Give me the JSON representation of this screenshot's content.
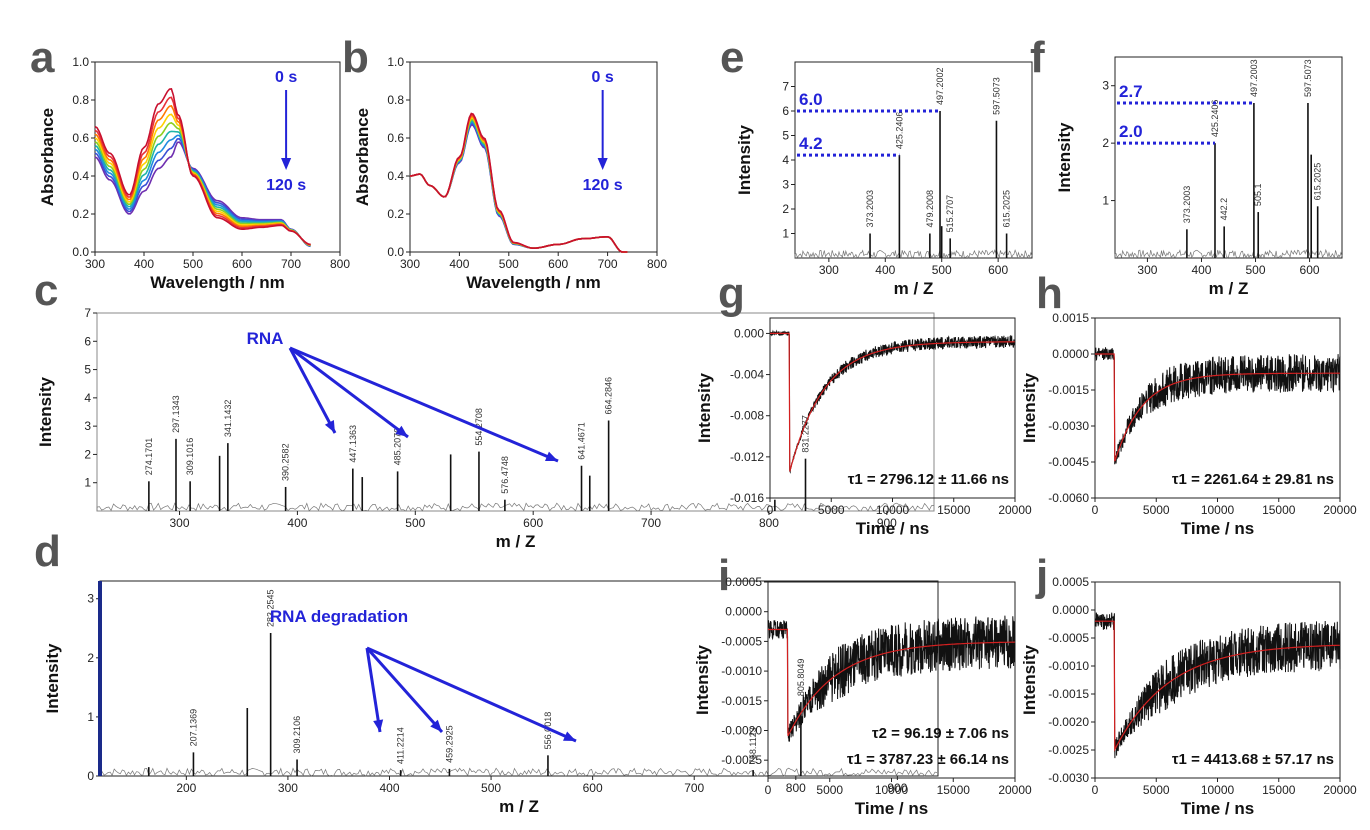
{
  "colors": {
    "ink": "#111111",
    "annot": "#2323d8",
    "fit": "#d42020",
    "letter": "#555555",
    "spectrum": [
      "#c8102e",
      "#e8323a",
      "#ff7a00",
      "#ffd000",
      "#8ccf1f",
      "#1fb5a8",
      "#1f8be0",
      "#3a4fd6",
      "#6f2fb0"
    ]
  },
  "chart_data": [
    {
      "id": "a",
      "letter": "a",
      "type": "line",
      "title": "",
      "xlabel": "Wavelength / nm",
      "ylabel": "Absorbance",
      "xlim": [
        300,
        800
      ],
      "ylim": [
        0,
        1.0
      ],
      "xticks": [
        300,
        400,
        500,
        600,
        700,
        800
      ],
      "yticks": [
        0.0,
        0.2,
        0.4,
        0.6,
        0.8,
        1.0
      ],
      "ytick_labels": [
        "0.0",
        "0.2",
        "0.4",
        "0.6",
        "0.8",
        "1.0"
      ],
      "annotation": {
        "start": "0 s",
        "end": "120 s"
      },
      "series": [
        {
          "name": "0 s",
          "x": [
            300,
            330,
            370,
            400,
            430,
            455,
            470,
            500,
            550,
            600,
            640,
            680,
            700,
            740
          ],
          "y": [
            0.66,
            0.52,
            0.3,
            0.55,
            0.78,
            0.86,
            0.72,
            0.4,
            0.18,
            0.12,
            0.13,
            0.14,
            0.11,
            0.04
          ]
        },
        {
          "name": "120 s",
          "x": [
            300,
            330,
            370,
            400,
            430,
            455,
            470,
            500,
            550,
            600,
            640,
            680,
            700,
            740
          ],
          "y": [
            0.5,
            0.38,
            0.2,
            0.32,
            0.44,
            0.5,
            0.58,
            0.44,
            0.27,
            0.18,
            0.17,
            0.17,
            0.12,
            0.03
          ]
        }
      ]
    },
    {
      "id": "b",
      "letter": "b",
      "type": "line",
      "title": "",
      "xlabel": "Wavelength / nm",
      "ylabel": "Absorbance",
      "xlim": [
        300,
        800
      ],
      "ylim": [
        0,
        1.0
      ],
      "xticks": [
        300,
        400,
        500,
        600,
        700,
        800
      ],
      "yticks": [
        0.0,
        0.2,
        0.4,
        0.6,
        0.8,
        1.0
      ],
      "ytick_labels": [
        "0.0",
        "0.2",
        "0.4",
        "0.6",
        "0.8",
        "1.0"
      ],
      "annotation": {
        "start": "0 s",
        "end": "120 s"
      },
      "series": [
        {
          "name": "0 s",
          "x": [
            300,
            320,
            340,
            370,
            400,
            425,
            450,
            480,
            510,
            550,
            600,
            650,
            700,
            730
          ],
          "y": [
            0.4,
            0.41,
            0.35,
            0.29,
            0.5,
            0.73,
            0.6,
            0.22,
            0.05,
            0.02,
            0.04,
            0.07,
            0.08,
            0.0
          ]
        },
        {
          "name": "120 s",
          "x": [
            300,
            320,
            340,
            370,
            400,
            425,
            450,
            480,
            510,
            550,
            600,
            650,
            700,
            730
          ],
          "y": [
            0.4,
            0.41,
            0.35,
            0.29,
            0.47,
            0.67,
            0.55,
            0.19,
            0.04,
            0.02,
            0.04,
            0.07,
            0.08,
            0.0
          ]
        }
      ]
    },
    {
      "id": "c",
      "letter": "c",
      "type": "bar",
      "title": "",
      "xlabel": "m / Z",
      "ylabel": "Intensity",
      "xlim": [
        230,
        940
      ],
      "ylim": [
        0,
        7
      ],
      "xticks": [
        300,
        400,
        500,
        600,
        700,
        800,
        900
      ],
      "yticks": [
        1,
        2,
        3,
        4,
        5,
        6,
        7
      ],
      "ytick_labels": [
        "1",
        "2",
        "3",
        "4",
        "5",
        "6",
        "7"
      ],
      "annotation": {
        "label": "RNA",
        "targets": [
          530,
          620,
          805
        ]
      },
      "peaks": [
        {
          "x": 274,
          "y": 1.05,
          "label": "274.1701"
        },
        {
          "x": 297,
          "y": 2.55,
          "label": "297.1343"
        },
        {
          "x": 309,
          "y": 1.05,
          "label": "309.1016"
        },
        {
          "x": 334,
          "y": 1.95,
          "label": ""
        },
        {
          "x": 341,
          "y": 2.4,
          "label": "341.1432"
        },
        {
          "x": 390,
          "y": 0.85,
          "label": "390.2582"
        },
        {
          "x": 447,
          "y": 1.5,
          "label": "447.1363"
        },
        {
          "x": 455,
          "y": 1.2,
          "label": ""
        },
        {
          "x": 485,
          "y": 1.4,
          "label": "485.2076"
        },
        {
          "x": 530,
          "y": 2.0,
          "label": ""
        },
        {
          "x": 554,
          "y": 2.1,
          "label": "554.2708"
        },
        {
          "x": 576,
          "y": 0.4,
          "label": "576.4748"
        },
        {
          "x": 641,
          "y": 1.6,
          "label": "641.4671"
        },
        {
          "x": 648,
          "y": 1.25,
          "label": ""
        },
        {
          "x": 664,
          "y": 3.2,
          "label": "664.2846"
        },
        {
          "x": 805,
          "y": 0.4,
          "label": ""
        },
        {
          "x": 831,
          "y": 1.85,
          "label": "831.2277"
        }
      ]
    },
    {
      "id": "d",
      "letter": "d",
      "type": "bar",
      "title": "",
      "xlabel": "m / Z",
      "ylabel": "Intensity",
      "xlim": [
        115,
        940
      ],
      "ylim": [
        0,
        3.3
      ],
      "xticks": [
        200,
        300,
        400,
        500,
        600,
        700,
        800,
        900
      ],
      "yticks": [
        0,
        1,
        2,
        3
      ],
      "ytick_labels": [
        "0",
        "1",
        "2",
        "3"
      ],
      "annotation": {
        "label": "RNA degradation",
        "targets": [
          530,
          620,
          805
        ]
      },
      "peaks": [
        {
          "x": 163,
          "y": 0.15,
          "label": ""
        },
        {
          "x": 207,
          "y": 0.4,
          "label": "207.1369"
        },
        {
          "x": 260,
          "y": 1.15,
          "label": ""
        },
        {
          "x": 283,
          "y": 2.42,
          "label": "283.2545"
        },
        {
          "x": 309,
          "y": 0.28,
          "label": "309.2106"
        },
        {
          "x": 411,
          "y": 0.1,
          "label": "411.2214"
        },
        {
          "x": 459,
          "y": 0.12,
          "label": "459.2925"
        },
        {
          "x": 556,
          "y": 0.35,
          "label": "556.0018"
        },
        {
          "x": 758,
          "y": 0.1,
          "label": "758.1123"
        },
        {
          "x": 805,
          "y": 1.25,
          "label": "805.8049"
        }
      ]
    },
    {
      "id": "e",
      "letter": "e",
      "type": "bar",
      "title": "",
      "xlabel": "m / Z",
      "ylabel": "Intensity",
      "xlim": [
        240,
        660
      ],
      "ylim": [
        0,
        8
      ],
      "xticks": [
        300,
        400,
        500,
        600
      ],
      "yticks": [
        1,
        2,
        3,
        4,
        5,
        6,
        7
      ],
      "ytick_labels": [
        "1",
        "2",
        "3",
        "4",
        "5",
        "6",
        "7"
      ],
      "markers": [
        {
          "value": 6.0,
          "label": "6.0"
        },
        {
          "value": 4.2,
          "label": "4.2"
        }
      ],
      "peaks": [
        {
          "x": 373,
          "y": 1.0,
          "label": "373.2003"
        },
        {
          "x": 425,
          "y": 4.2,
          "label": "425.2406"
        },
        {
          "x": 479,
          "y": 1.0,
          "label": "479.2008"
        },
        {
          "x": 497,
          "y": 6.0,
          "label": "497.2002"
        },
        {
          "x": 500,
          "y": 1.3,
          "label": ""
        },
        {
          "x": 515,
          "y": 0.8,
          "label": "515.2707"
        },
        {
          "x": 597,
          "y": 5.6,
          "label": "597.5073"
        },
        {
          "x": 615,
          "y": 1.0,
          "label": "615.2025"
        }
      ]
    },
    {
      "id": "f",
      "letter": "f",
      "type": "bar",
      "title": "",
      "xlabel": "m / Z",
      "ylabel": "Intensity",
      "xlim": [
        240,
        660
      ],
      "ylim": [
        0,
        3.5
      ],
      "xticks": [
        300,
        400,
        500,
        600
      ],
      "yticks": [
        1,
        2,
        3
      ],
      "ytick_labels": [
        "1",
        "2",
        "3"
      ],
      "markers": [
        {
          "value": 2.7,
          "label": "2.7"
        },
        {
          "value": 2.0,
          "label": "2.0"
        }
      ],
      "peaks": [
        {
          "x": 373,
          "y": 0.5,
          "label": "373.2003"
        },
        {
          "x": 425,
          "y": 2.0,
          "label": "425.2406"
        },
        {
          "x": 442,
          "y": 0.55,
          "label": "442.2"
        },
        {
          "x": 497,
          "y": 2.7,
          "label": "497.2003"
        },
        {
          "x": 505,
          "y": 0.8,
          "label": "505.1"
        },
        {
          "x": 597,
          "y": 2.7,
          "label": "597.5073"
        },
        {
          "x": 603,
          "y": 1.8,
          "label": ""
        },
        {
          "x": 615,
          "y": 0.9,
          "label": "615.2025"
        }
      ]
    },
    {
      "id": "g",
      "letter": "g",
      "type": "line",
      "title": "",
      "xlabel": "Time / ns",
      "ylabel": "Intensity",
      "xlim": [
        0,
        20000
      ],
      "ylim": [
        -0.016,
        0.0015
      ],
      "xticks": [
        0,
        5000,
        10000,
        15000,
        20000
      ],
      "xtick_labels": [
        "0",
        "5000",
        "10000",
        "15000",
        "20000"
      ],
      "yticks": [
        0,
        -0.004,
        -0.008,
        -0.012,
        -0.016
      ],
      "ytick_labels": [
        "0.000",
        "-0.004",
        "-0.008",
        "-0.012",
        "-0.016"
      ],
      "decay": {
        "t0": 1600,
        "baseline": 0.0,
        "min": -0.0135,
        "final": -0.0008,
        "tau": 2796.12,
        "noise": 0.0012
      },
      "lifetimes": [
        {
          "label": "τ1 = 2796.12 ± 11.66 ns"
        }
      ]
    },
    {
      "id": "h",
      "letter": "h",
      "type": "line",
      "title": "",
      "xlabel": "Time / ns",
      "ylabel": "Intensity",
      "xlim": [
        0,
        20000
      ],
      "ylim": [
        -0.006,
        0.0015
      ],
      "xticks": [
        0,
        5000,
        10000,
        15000,
        20000
      ],
      "xtick_labels": [
        "0",
        "5000",
        "10000",
        "15000",
        "20000"
      ],
      "yticks": [
        0.0015,
        0,
        -0.0015,
        -0.003,
        -0.0045,
        -0.006
      ],
      "ytick_labels": [
        "0.0015",
        "0.0000",
        "-0.0015",
        "-0.0030",
        "-0.0045",
        "-0.0060"
      ],
      "decay": {
        "t0": 1600,
        "baseline": 0.0,
        "min": -0.0045,
        "final": -0.0008,
        "tau": 2261.64,
        "noise": 0.0016
      },
      "lifetimes": [
        {
          "label": "τ1 = 2261.64 ± 29.81 ns"
        }
      ]
    },
    {
      "id": "i",
      "letter": "i",
      "type": "line",
      "title": "",
      "xlabel": "Time / ns",
      "ylabel": "Intensity",
      "xlim": [
        0,
        20000
      ],
      "ylim": [
        -0.0028,
        0.0005
      ],
      "xticks": [
        0,
        5000,
        10000,
        15000,
        20000
      ],
      "xtick_labels": [
        "0",
        "5000",
        "10000",
        "15000",
        "20000"
      ],
      "yticks": [
        0.0005,
        0,
        -0.0005,
        -0.001,
        -0.0015,
        -0.002,
        -0.0025
      ],
      "ytick_labels": [
        "0.0005",
        "0.0000",
        "-0.0005",
        "-0.0010",
        "-0.0015",
        "-0.0020",
        "-0.0025"
      ],
      "decay": {
        "t0": 1600,
        "baseline": -0.0003,
        "min": -0.0021,
        "final": -0.0005,
        "tau": 3787.23,
        "noise": 0.0009
      },
      "lifetimes": [
        {
          "label": "τ2 = 96.19 ± 7.06 ns"
        },
        {
          "label": "τ1 = 3787.23 ± 66.14 ns"
        }
      ]
    },
    {
      "id": "j",
      "letter": "j",
      "type": "line",
      "title": "",
      "xlabel": "Time / ns",
      "ylabel": "Intensity",
      "xlim": [
        0,
        20000
      ],
      "ylim": [
        -0.003,
        0.0005
      ],
      "xticks": [
        0,
        5000,
        10000,
        15000,
        20000
      ],
      "xtick_labels": [
        "0",
        "5000",
        "10000",
        "15000",
        "20000"
      ],
      "yticks": [
        0.0005,
        0,
        -0.0005,
        -0.001,
        -0.0015,
        -0.002,
        -0.0025,
        -0.003
      ],
      "ytick_labels": [
        "0.0005",
        "0.0000",
        "-0.0005",
        "-0.0010",
        "-0.0015",
        "-0.0020",
        "-0.0025",
        "-0.0030"
      ],
      "decay": {
        "t0": 1600,
        "baseline": -0.0002,
        "min": -0.0025,
        "final": -0.0006,
        "tau": 4413.68,
        "noise": 0.0009
      },
      "lifetimes": [
        {
          "label": "τ1 = 4413.68 ± 57.17 ns"
        }
      ]
    }
  ]
}
